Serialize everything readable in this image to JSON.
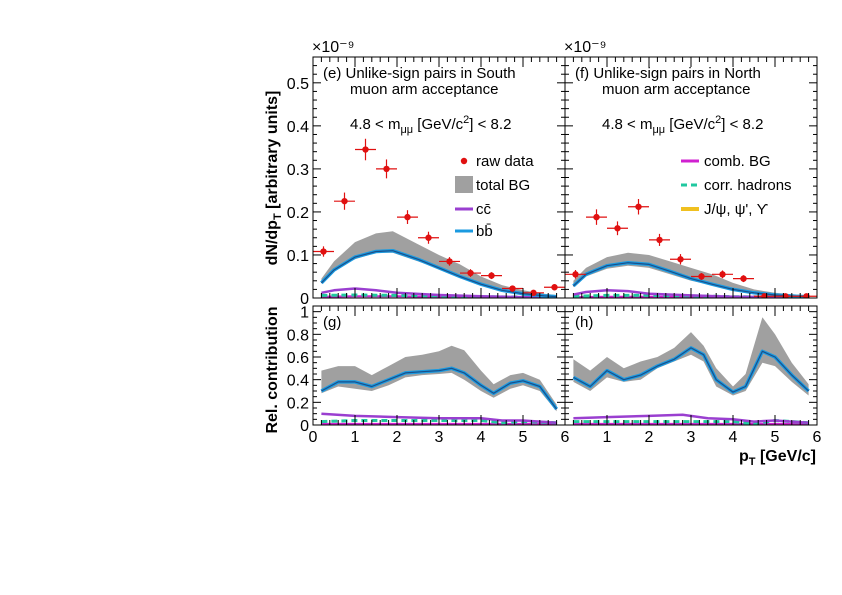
{
  "figure": {
    "y_axis_label_top": "dN/dp_T [arbitrary units]",
    "y_axis_label_bottom": "Rel. contribution",
    "x_axis_label": "p_T [GeV/c]",
    "exponent_label": "×10⁻⁹"
  },
  "legend": {
    "raw_data": "raw data",
    "total_bg": "total BG",
    "cc": "cc̄",
    "bb": "bb̄",
    "comb_bg": "comb. BG",
    "corr_hadrons": "corr. hadrons",
    "jpsi": "J/ψ, ψ', ϒ"
  },
  "colors": {
    "raw": "#e01010",
    "band": "#a0a0a0",
    "cc": "#9a3fd0",
    "bb": "#1a9ae0",
    "bb_dark": "#1a4f8a",
    "comb": "#d020d0",
    "corr": "#20c8a0",
    "jpsi": "#f0c020"
  },
  "chart_data": [
    {
      "id": "e",
      "type": "scatter",
      "panel_label": "(e)",
      "title": "Unlike-sign pairs in South",
      "subtitle": "muon arm acceptance",
      "mass_cut": "4.8 < m_μμ [GeV/c²] < 8.2",
      "xlim": [
        0,
        6
      ],
      "ylim": [
        0,
        0.56
      ],
      "x_ticks": [
        0,
        1,
        2,
        3,
        4,
        5
      ],
      "x_tick_labels": [
        "0",
        "1",
        "2",
        "3",
        "4",
        "5"
      ],
      "y_ticks": [
        0,
        0.1,
        0.2,
        0.3,
        0.4,
        0.5
      ],
      "y_tick_labels": [
        "0",
        "0.1",
        "0.2",
        "0.3",
        "0.4",
        "0.5"
      ],
      "raw": {
        "x": [
          0.25,
          0.75,
          1.25,
          1.75,
          2.25,
          2.75,
          3.25,
          3.75,
          4.25,
          4.75,
          5.25,
          5.75
        ],
        "y": [
          0.108,
          0.225,
          0.345,
          0.3,
          0.188,
          0.14,
          0.085,
          0.058,
          0.052,
          0.022,
          0.012,
          0.025
        ],
        "err": [
          0.012,
          0.02,
          0.025,
          0.022,
          0.016,
          0.014,
          0.01,
          0.009,
          0.008,
          0.006,
          0.005,
          0.006
        ]
      },
      "band": {
        "x": [
          0.2,
          0.5,
          1.0,
          1.5,
          1.9,
          2.5,
          3.0,
          3.5,
          4.0,
          4.5,
          5.0,
          5.5,
          5.8
        ],
        "lo": [
          0.035,
          0.065,
          0.09,
          0.105,
          0.105,
          0.085,
          0.068,
          0.05,
          0.03,
          0.018,
          0.01,
          0.006,
          0.004
        ],
        "hi": [
          0.045,
          0.085,
          0.13,
          0.15,
          0.155,
          0.125,
          0.1,
          0.078,
          0.05,
          0.03,
          0.018,
          0.01,
          0.007
        ]
      },
      "bb": {
        "x": [
          0.2,
          0.5,
          1.0,
          1.5,
          1.9,
          2.5,
          3.0,
          3.5,
          4.0,
          4.5,
          5.0,
          5.5,
          5.8
        ],
        "y": [
          0.035,
          0.065,
          0.095,
          0.108,
          0.11,
          0.09,
          0.07,
          0.05,
          0.032,
          0.018,
          0.01,
          0.005,
          0.003
        ]
      },
      "cc": {
        "x": [
          0.2,
          0.5,
          1.0,
          1.5,
          2.0,
          3.0,
          4.0,
          5.0,
          5.8
        ],
        "y": [
          0.012,
          0.018,
          0.022,
          0.018,
          0.012,
          0.007,
          0.004,
          0.002,
          0.001
        ]
      },
      "comb": {
        "x": [
          0.2,
          1.0,
          2.0,
          3.0,
          4.0,
          5.0,
          5.8
        ],
        "y": [
          0.003,
          0.004,
          0.004,
          0.003,
          0.002,
          0.001,
          0.001
        ]
      },
      "corr": {
        "x": [
          0.2,
          1.0,
          2.0,
          3.0,
          4.0,
          5.0,
          5.8
        ],
        "y": [
          0.006,
          0.007,
          0.006,
          0.005,
          0.003,
          0.002,
          0.001
        ]
      }
    },
    {
      "id": "f",
      "type": "scatter",
      "panel_label": "(f)",
      "title": "Unlike-sign pairs in North",
      "subtitle": "muon arm acceptance",
      "mass_cut": "4.8 < m_μμ [GeV/c²] < 8.2",
      "xlim": [
        0,
        6
      ],
      "ylim": [
        0,
        0.56
      ],
      "raw": {
        "x": [
          0.25,
          0.75,
          1.25,
          1.75,
          2.25,
          2.75,
          3.25,
          3.75,
          4.25,
          4.75,
          5.25,
          5.75
        ],
        "y": [
          0.055,
          0.188,
          0.162,
          0.212,
          0.135,
          0.09,
          0.05,
          0.055,
          0.045,
          0.004,
          0.004,
          0.004
        ],
        "err": [
          0.01,
          0.018,
          0.016,
          0.018,
          0.014,
          0.012,
          0.008,
          0.009,
          0.008,
          0.004,
          0.004,
          0.004
        ]
      },
      "band": {
        "x": [
          0.2,
          0.5,
          1.0,
          1.5,
          2.0,
          2.5,
          3.0,
          3.5,
          4.0,
          4.5,
          5.0,
          5.5,
          5.8
        ],
        "lo": [
          0.025,
          0.05,
          0.068,
          0.075,
          0.07,
          0.055,
          0.04,
          0.03,
          0.018,
          0.01,
          0.006,
          0.004,
          0.003
        ],
        "hi": [
          0.04,
          0.07,
          0.095,
          0.105,
          0.1,
          0.085,
          0.07,
          0.055,
          0.035,
          0.02,
          0.012,
          0.008,
          0.006
        ]
      },
      "bb": {
        "x": [
          0.2,
          0.5,
          1.0,
          1.5,
          2.0,
          2.5,
          3.0,
          3.5,
          4.0,
          4.5,
          5.0,
          5.5,
          5.8
        ],
        "y": [
          0.028,
          0.055,
          0.075,
          0.082,
          0.078,
          0.062,
          0.045,
          0.032,
          0.02,
          0.012,
          0.007,
          0.004,
          0.003
        ]
      },
      "cc": {
        "x": [
          0.2,
          0.5,
          1.0,
          1.5,
          2.0,
          3.0,
          4.0,
          5.0,
          5.8
        ],
        "y": [
          0.008,
          0.014,
          0.018,
          0.016,
          0.01,
          0.006,
          0.003,
          0.002,
          0.001
        ]
      },
      "comb": {
        "x": [
          0.2,
          1.0,
          2.0,
          3.0,
          4.0,
          5.0,
          5.8
        ],
        "y": [
          0.002,
          0.003,
          0.003,
          0.003,
          0.002,
          0.001,
          0.001
        ]
      },
      "corr": {
        "x": [
          0.2,
          1.0,
          2.0,
          3.0,
          4.0,
          5.0,
          5.8
        ],
        "y": [
          0.004,
          0.006,
          0.006,
          0.005,
          0.003,
          0.002,
          0.001
        ]
      }
    },
    {
      "id": "g",
      "type": "area",
      "panel_label": "(g)",
      "xlim": [
        0,
        6
      ],
      "ylim": [
        0,
        1.05
      ],
      "x_ticks": [
        0,
        1,
        2,
        3,
        4,
        5,
        6
      ],
      "x_tick_labels": [
        "0",
        "1",
        "2",
        "3",
        "4",
        "5",
        "6"
      ],
      "y_ticks": [
        0,
        0.2,
        0.4,
        0.6,
        0.8,
        1.0
      ],
      "y_tick_labels": [
        "0",
        "0.2",
        "0.4",
        "0.6",
        "0.8",
        "1"
      ],
      "band": {
        "x": [
          0.2,
          0.6,
          1.0,
          1.4,
          1.8,
          2.2,
          2.6,
          3.0,
          3.3,
          3.6,
          4.0,
          4.3,
          4.7,
          5.0,
          5.4,
          5.8
        ],
        "lo": [
          0.28,
          0.34,
          0.32,
          0.3,
          0.35,
          0.42,
          0.44,
          0.45,
          0.46,
          0.4,
          0.3,
          0.24,
          0.32,
          0.35,
          0.3,
          0.12
        ],
        "hi": [
          0.48,
          0.52,
          0.52,
          0.44,
          0.52,
          0.6,
          0.62,
          0.65,
          0.7,
          0.66,
          0.48,
          0.36,
          0.44,
          0.46,
          0.4,
          0.18
        ]
      },
      "bb": {
        "x": [
          0.2,
          0.6,
          1.0,
          1.4,
          1.8,
          2.2,
          2.6,
          3.0,
          3.3,
          3.6,
          4.0,
          4.3,
          4.7,
          5.0,
          5.4,
          5.8
        ],
        "y": [
          0.3,
          0.38,
          0.38,
          0.34,
          0.4,
          0.46,
          0.47,
          0.48,
          0.5,
          0.46,
          0.35,
          0.28,
          0.37,
          0.39,
          0.34,
          0.14
        ]
      },
      "cc": {
        "x": [
          0.2,
          1.0,
          2.0,
          3.0,
          4.0,
          4.5,
          5.0,
          5.8
        ],
        "y": [
          0.1,
          0.08,
          0.07,
          0.06,
          0.06,
          0.04,
          0.04,
          0.02
        ]
      },
      "comb": {
        "x": [
          0.2,
          1.0,
          2.0,
          3.0,
          4.0,
          5.0,
          5.8
        ],
        "y": [
          0.01,
          0.01,
          0.01,
          0.01,
          0.01,
          0.01,
          0.01
        ]
      },
      "corr": {
        "x": [
          0.2,
          1.0,
          2.0,
          3.0,
          4.0,
          4.5,
          5.0,
          5.8
        ],
        "y": [
          0.03,
          0.04,
          0.04,
          0.04,
          0.04,
          0.02,
          0.03,
          0.02
        ]
      }
    },
    {
      "id": "h",
      "type": "area",
      "panel_label": "(h)",
      "xlim": [
        0,
        6
      ],
      "ylim": [
        0,
        1.05
      ],
      "x_ticks": [
        0,
        1,
        2,
        3,
        4,
        5,
        6
      ],
      "x_tick_labels": [
        "0",
        "1",
        "2",
        "3",
        "4",
        "5",
        "6"
      ],
      "band": {
        "x": [
          0.2,
          0.6,
          1.0,
          1.4,
          1.8,
          2.2,
          2.6,
          3.0,
          3.3,
          3.6,
          4.0,
          4.3,
          4.7,
          5.0,
          5.4,
          5.8
        ],
        "lo": [
          0.38,
          0.3,
          0.42,
          0.38,
          0.4,
          0.5,
          0.56,
          0.62,
          0.56,
          0.34,
          0.26,
          0.3,
          0.55,
          0.52,
          0.38,
          0.26
        ],
        "hi": [
          0.58,
          0.48,
          0.6,
          0.5,
          0.56,
          0.6,
          0.68,
          0.82,
          0.7,
          0.5,
          0.34,
          0.45,
          0.95,
          0.8,
          0.55,
          0.36
        ]
      },
      "bb": {
        "x": [
          0.2,
          0.6,
          1.0,
          1.4,
          1.8,
          2.2,
          2.6,
          3.0,
          3.3,
          3.6,
          4.0,
          4.3,
          4.7,
          5.0,
          5.4,
          5.8
        ],
        "y": [
          0.42,
          0.34,
          0.48,
          0.4,
          0.44,
          0.52,
          0.58,
          0.68,
          0.62,
          0.4,
          0.29,
          0.34,
          0.65,
          0.6,
          0.44,
          0.3
        ]
      },
      "cc": {
        "x": [
          0.2,
          1.0,
          2.0,
          2.8,
          3.4,
          4.0,
          4.5,
          5.0,
          5.8
        ],
        "y": [
          0.06,
          0.07,
          0.08,
          0.09,
          0.06,
          0.05,
          0.03,
          0.04,
          0.02
        ]
      },
      "comb": {
        "x": [
          0.2,
          1.0,
          2.0,
          3.0,
          4.0,
          5.0,
          5.8
        ],
        "y": [
          0.01,
          0.01,
          0.01,
          0.01,
          0.01,
          0.01,
          0.01
        ]
      },
      "corr": {
        "x": [
          0.2,
          1.0,
          2.0,
          3.0,
          4.0,
          4.5,
          5.0,
          5.8
        ],
        "y": [
          0.03,
          0.03,
          0.03,
          0.03,
          0.03,
          0.01,
          0.04,
          0.02
        ]
      }
    }
  ]
}
